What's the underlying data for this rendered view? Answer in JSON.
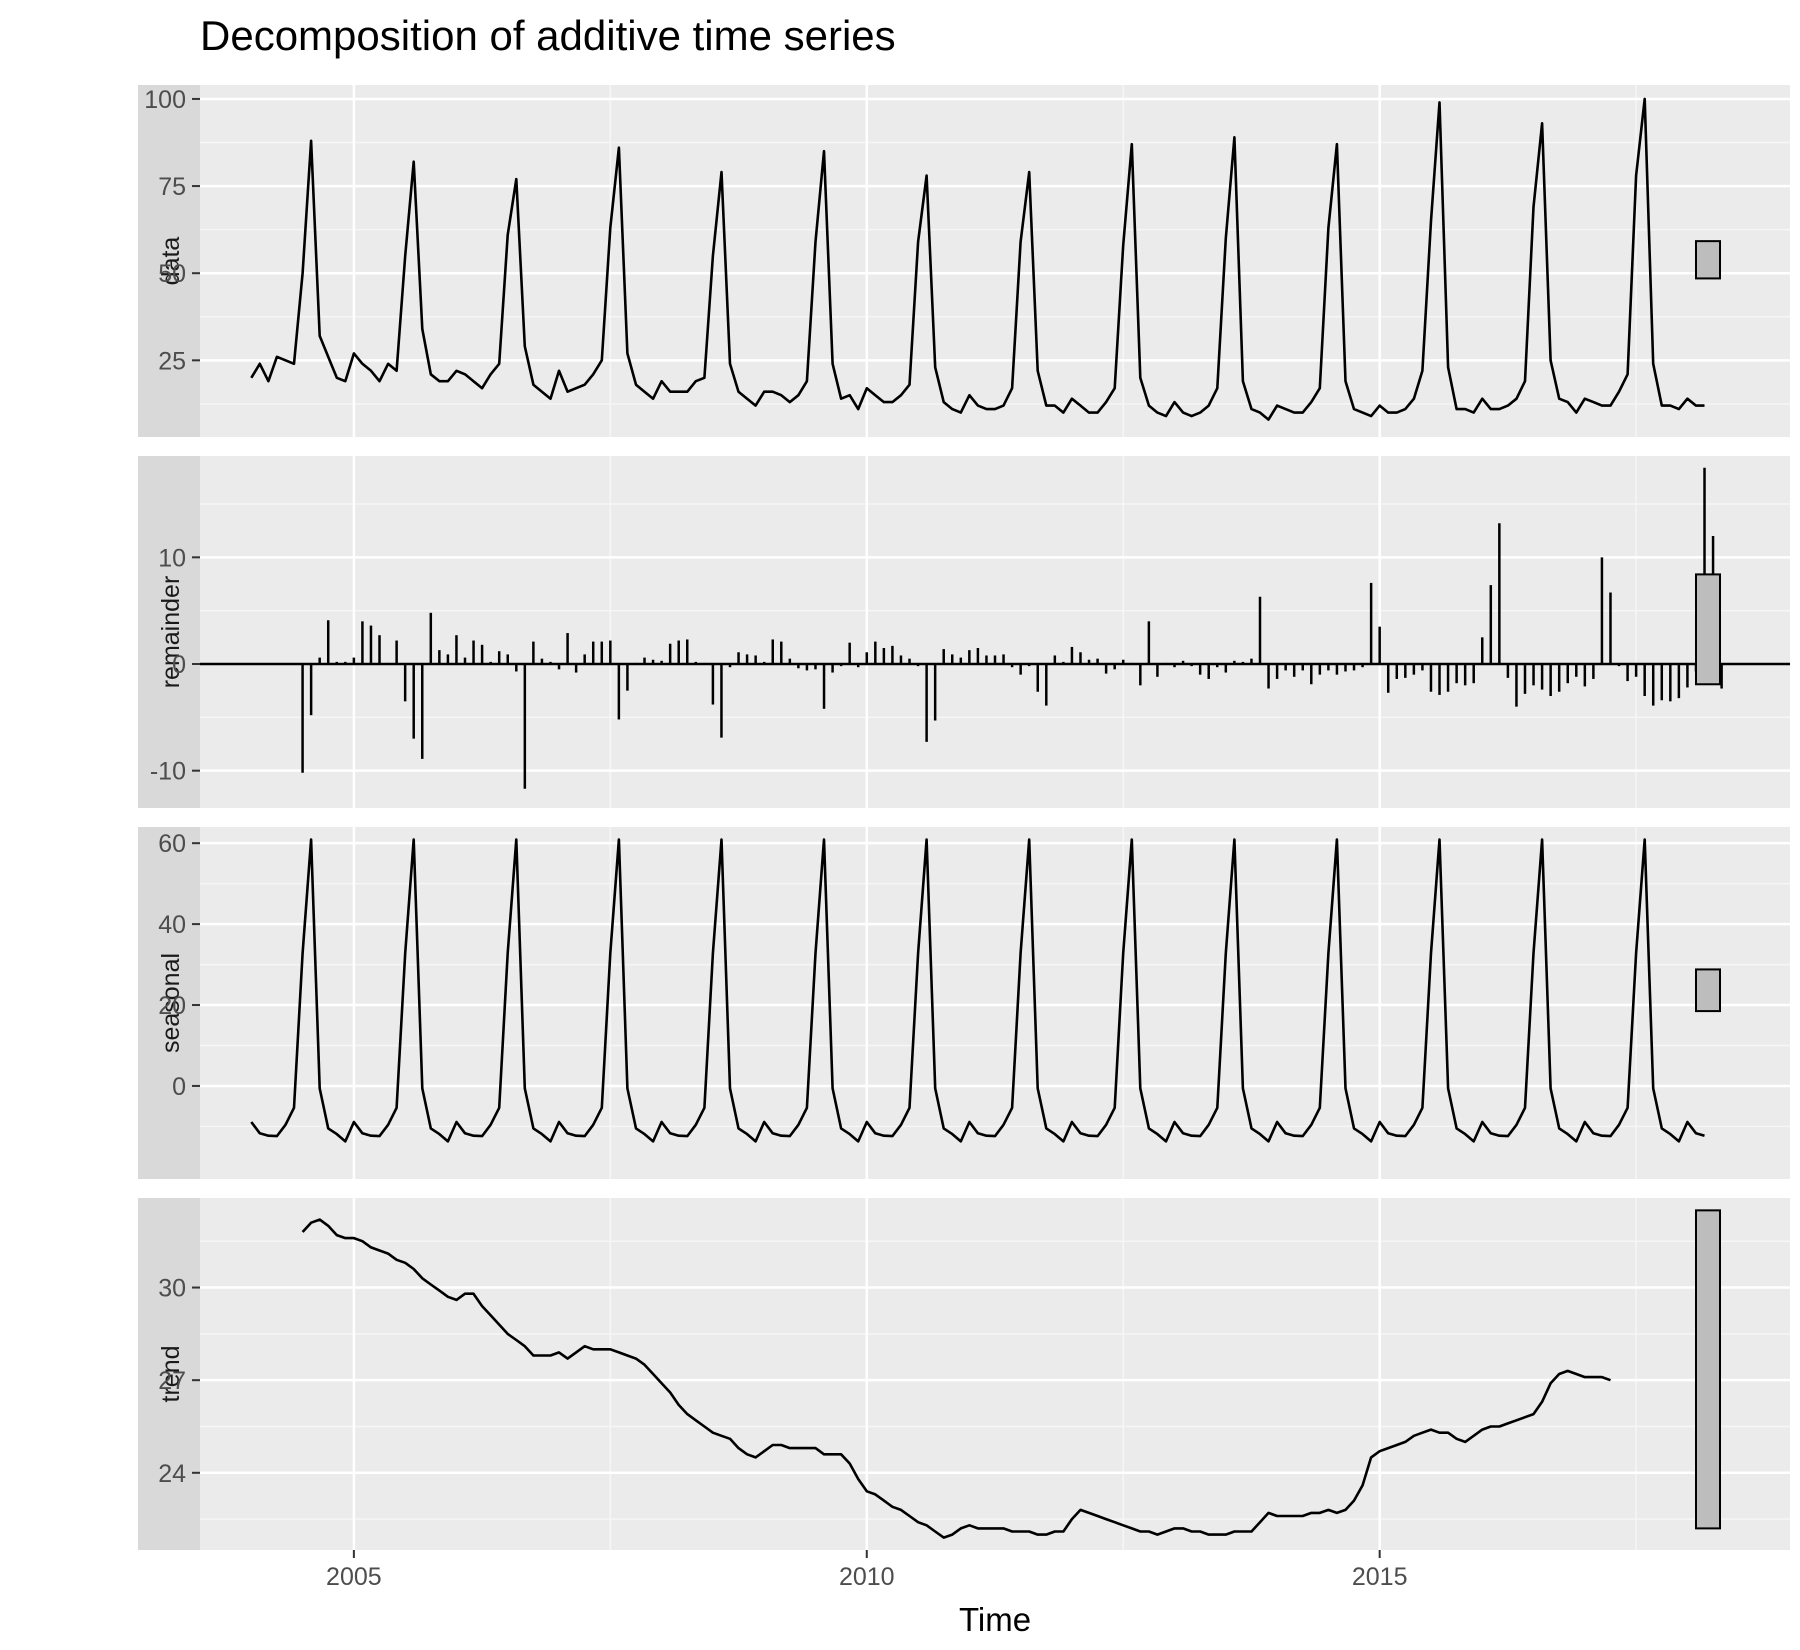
{
  "chart_title": "Decomposition of additive time series",
  "chart_data": {
    "type": "line",
    "title": "Decomposition of additive time series",
    "xlabel": "Time",
    "x_start": 2004.0,
    "frequency": 12,
    "xlim": [
      2003.5,
      2019.0
    ],
    "x_ticks": [
      2005,
      2010,
      2015
    ],
    "x_tick_labels": [
      "2005",
      "2010",
      "2015"
    ],
    "grid": true,
    "panels": [
      {
        "name": "data",
        "style": "line",
        "ylim": [
          3,
          104
        ],
        "y_ticks": [
          25,
          50,
          75,
          100
        ],
        "y_tick_labels": [
          "25",
          "50",
          "75",
          "100"
        ],
        "scale_bar": [
          48.5,
          59.2
        ],
        "values": [
          20,
          24,
          19,
          26,
          25,
          24,
          50,
          88,
          32,
          26,
          20,
          19,
          27,
          24,
          22,
          19,
          24,
          22,
          55,
          82,
          34,
          21,
          19,
          19,
          22,
          21,
          19,
          17,
          21,
          24,
          61,
          77,
          29,
          18,
          16,
          14,
          22,
          16,
          17,
          18,
          21,
          25,
          63,
          86,
          27,
          18,
          16,
          14,
          19,
          16,
          16,
          16,
          19,
          20,
          55,
          79,
          24,
          16,
          14,
          12,
          16,
          16,
          15,
          13,
          15,
          19,
          59,
          85,
          24,
          14,
          15,
          11,
          17,
          15,
          13,
          13,
          15,
          18,
          59,
          78,
          23,
          13,
          11,
          10,
          15,
          12,
          11,
          11,
          12,
          17,
          59,
          79,
          22,
          12,
          12,
          10,
          14,
          12,
          10,
          10,
          13,
          17,
          58,
          87,
          20,
          12,
          10,
          9,
          13,
          10,
          9,
          10,
          12,
          17,
          60,
          89,
          19,
          11,
          10,
          8,
          12,
          11,
          10,
          10,
          13,
          17,
          63,
          87,
          19,
          11,
          10,
          9,
          12,
          10,
          10,
          11,
          14,
          22,
          65,
          99,
          23,
          11,
          11,
          10,
          14,
          11,
          11,
          12,
          14,
          19,
          69,
          93,
          25,
          14,
          13,
          10,
          14,
          13,
          12,
          12,
          16,
          21,
          78,
          100,
          24,
          12,
          12,
          11,
          14,
          12,
          12
        ]
      },
      {
        "name": "remainder",
        "style": "bars",
        "ylim": [
          -13.5,
          19.5
        ],
        "y_ticks": [
          -10,
          0,
          10
        ],
        "y_tick_labels": [
          "-10",
          "0",
          "10"
        ],
        "scale_bar": [
          -1.9,
          8.4
        ],
        "start_index": 6,
        "values": [
          -10.2,
          -4.8,
          0.6,
          4.1,
          0.2,
          0.2,
          0.6,
          4.0,
          3.6,
          2.7,
          0.1,
          2.2,
          -3.5,
          -7.0,
          -8.9,
          4.8,
          1.3,
          0.9,
          2.7,
          0.6,
          2.2,
          1.8,
          0.2,
          1.2,
          0.9,
          -0.7,
          -11.7,
          2.1,
          0.5,
          0.2,
          -0.5,
          2.9,
          -0.8,
          0.9,
          2.1,
          2.1,
          2.2,
          -5.2,
          -2.5,
          0.1,
          0.6,
          0.4,
          0.3,
          1.9,
          2.2,
          2.3,
          0.2,
          0.1,
          -3.8,
          -6.9,
          -0.3,
          1.1,
          0.9,
          0.8,
          0.2,
          2.3,
          2.1,
          0.5,
          -0.4,
          -0.6,
          -0.5,
          -4.2,
          -0.8,
          -0.2,
          2.0,
          -0.3,
          1.1,
          2.1,
          1.5,
          1.7,
          0.8,
          0.5,
          -0.2,
          -7.3,
          -5.3,
          1.4,
          0.9,
          0.6,
          1.3,
          1.5,
          0.8,
          0.8,
          0.9,
          -0.3,
          -1.0,
          -0.2,
          -2.6,
          -3.9,
          0.8,
          0.2,
          1.6,
          1.1,
          0.4,
          0.5,
          -0.9,
          -0.5,
          0.4,
          0.1,
          -2.0,
          4.0,
          -1.2,
          0.1,
          -0.3,
          0.3,
          -0.2,
          -1.0,
          -1.4,
          -0.3,
          -0.8,
          0.3,
          0.2,
          0.5,
          6.3,
          -2.3,
          -1.4,
          -0.6,
          -1.2,
          -0.6,
          -1.9,
          -1.0,
          -0.6,
          -1.0,
          -0.7,
          -0.6,
          -0.3,
          7.6,
          3.5,
          -2.7,
          -1.4,
          -1.3,
          -1.0,
          -0.6,
          -2.6,
          -2.9,
          -2.6,
          -1.8,
          -2.0,
          -1.8,
          2.5,
          7.4,
          13.2,
          -1.3,
          -4.0,
          -2.8,
          -2.0,
          -2.4,
          -3.0,
          -2.6,
          -1.8,
          -1.2,
          -2.1,
          -1.4,
          10.0,
          6.7,
          -0.2,
          -1.6,
          -1.2,
          -3.0,
          -3.9,
          -3.4,
          -3.5,
          -3.2,
          -2.2,
          -0.7,
          18.4,
          12.0,
          -2.3
        ]
      },
      {
        "name": "seasonal",
        "style": "line",
        "ylim": [
          -23,
          64
        ],
        "y_ticks": [
          0,
          20,
          40,
          60
        ],
        "y_tick_labels": [
          "0",
          "20",
          "40",
          "60"
        ],
        "seasonal_pattern": [
          -8.9,
          -11.7,
          -12.3,
          -12.4,
          -9.6,
          -5.4,
          32.8,
          60.9,
          -0.6,
          -10.5,
          -11.9,
          -13.7
        ],
        "cycles": 14.25,
        "scale_bar": [
          18.5,
          28.8
        ]
      },
      {
        "name": "trend",
        "style": "line",
        "ylim": [
          21.5,
          32.9
        ],
        "y_ticks": [
          24,
          27,
          30
        ],
        "y_tick_labels": [
          "24",
          "27",
          "30"
        ],
        "scale_bar": [
          22.2,
          32.5
        ],
        "start_index": 6,
        "values": [
          31.8,
          32.1,
          32.2,
          32.0,
          31.7,
          31.6,
          31.6,
          31.5,
          31.3,
          31.2,
          31.1,
          30.9,
          30.8,
          30.6,
          30.3,
          30.1,
          29.9,
          29.7,
          29.6,
          29.8,
          29.8,
          29.4,
          29.1,
          28.8,
          28.5,
          28.3,
          28.1,
          27.8,
          27.8,
          27.8,
          27.9,
          27.7,
          27.9,
          28.1,
          28.0,
          28.0,
          28.0,
          27.9,
          27.8,
          27.7,
          27.5,
          27.2,
          26.9,
          26.6,
          26.2,
          25.9,
          25.7,
          25.5,
          25.3,
          25.2,
          25.1,
          24.8,
          24.6,
          24.5,
          24.7,
          24.9,
          24.9,
          24.8,
          24.8,
          24.8,
          24.8,
          24.6,
          24.6,
          24.6,
          24.3,
          23.8,
          23.4,
          23.3,
          23.1,
          22.9,
          22.8,
          22.6,
          22.4,
          22.3,
          22.1,
          21.9,
          22.0,
          22.2,
          22.3,
          22.2,
          22.2,
          22.2,
          22.2,
          22.1,
          22.1,
          22.1,
          22.0,
          22.0,
          22.1,
          22.1,
          22.5,
          22.8,
          22.7,
          22.6,
          22.5,
          22.4,
          22.3,
          22.2,
          22.1,
          22.1,
          22.0,
          22.1,
          22.2,
          22.2,
          22.1,
          22.1,
          22.0,
          22.0,
          22.0,
          22.1,
          22.1,
          22.1,
          22.4,
          22.7,
          22.6,
          22.6,
          22.6,
          22.6,
          22.7,
          22.7,
          22.8,
          22.7,
          22.8,
          23.1,
          23.6,
          24.5,
          24.7,
          24.8,
          24.9,
          25.0,
          25.2,
          25.3,
          25.4,
          25.3,
          25.3,
          25.1,
          25.0,
          25.2,
          25.4,
          25.5,
          25.5,
          25.6,
          25.7,
          25.8,
          25.9,
          26.3,
          26.9,
          27.2,
          27.3,
          27.2,
          27.1,
          27.1,
          27.1,
          27.0
        ]
      }
    ]
  }
}
